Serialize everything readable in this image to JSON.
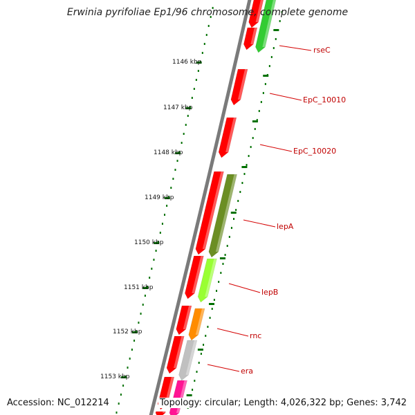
{
  "title": "Erwinia pyrifoliae Ep1/96 chromosome, complete genome",
  "accession": "Accession: NC_012214",
  "topology": "Topology: circular; Length: 4,026,322 bp; Genes: 3,742",
  "kbp_ticks": [
    {
      "label": "1146 kbp"
    },
    {
      "label": "1147 kbp"
    },
    {
      "label": "1148 kbp"
    },
    {
      "label": "1149 kbp"
    },
    {
      "label": "1150 kbp"
    },
    {
      "label": "1151 kbp"
    },
    {
      "label": "1152 kbp"
    },
    {
      "label": "1153 kbp"
    }
  ],
  "gene_labels": [
    {
      "name": "rseC"
    },
    {
      "name": "EpC_10010"
    },
    {
      "name": "EpC_10020"
    },
    {
      "name": "lepA"
    },
    {
      "name": "lepB"
    },
    {
      "name": "rnc"
    },
    {
      "name": "era"
    }
  ],
  "colors": {
    "cds": "#ff0000",
    "backbone": "#808080",
    "tick": "#007000",
    "label": "#c00000",
    "green": "#33cc33",
    "olive": "#6b8e23",
    "lime": "#99ff33",
    "orange": "#ff8c00",
    "grey": "#c0c0c0",
    "magenta": "#ff1493"
  }
}
